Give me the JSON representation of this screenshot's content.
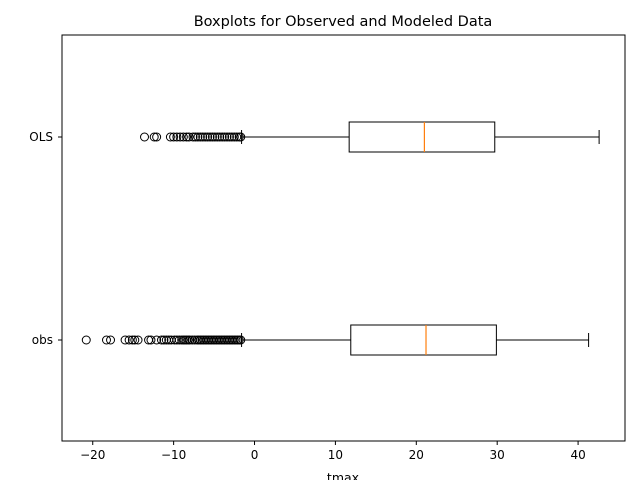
{
  "chart_data": {
    "type": "boxplot",
    "orientation": "horizontal",
    "title": "Boxplots for Observed and Modeled Data",
    "xlabel": "tmax",
    "ylabel": "",
    "xlim": [
      -23.8,
      45.8
    ],
    "xticks": [
      -20,
      -10,
      0,
      10,
      20,
      30,
      40
    ],
    "categories": [
      "obs",
      "OLS"
    ],
    "grid": false,
    "colors": {
      "box": "#000000",
      "median": "#ff7f0e",
      "flier": "#000000"
    },
    "series": [
      {
        "category": "obs",
        "whisker_low": -1.6,
        "q1": 11.9,
        "median": 21.2,
        "q3": 29.9,
        "whisker_high": 41.3,
        "outliers": [
          -20.8,
          -18.3,
          -17.8,
          -16.0,
          -15.5,
          -15.1,
          -14.8,
          -14.4,
          -13.1,
          -12.8,
          -12.1,
          -11.5,
          -11.2,
          -10.9,
          -10.6,
          -10.3,
          -9.9,
          -9.6,
          -9.3,
          -9.0,
          -8.8,
          -8.6,
          -8.4,
          -8.2,
          -8.0,
          -7.7,
          -7.4,
          -7.1,
          -6.9,
          -6.7,
          -6.5,
          -6.3,
          -6.1,
          -5.9,
          -5.7,
          -5.5,
          -5.3,
          -5.1,
          -4.9,
          -4.7,
          -4.5,
          -4.3,
          -4.1,
          -3.9,
          -3.7,
          -3.5,
          -3.3,
          -3.1,
          -2.9,
          -2.7,
          -2.5,
          -2.3,
          -2.1,
          -1.9,
          -1.7
        ]
      },
      {
        "category": "OLS",
        "whisker_low": -1.6,
        "q1": 11.7,
        "median": 21.0,
        "q3": 29.7,
        "whisker_high": 42.6,
        "outliers": [
          -13.6,
          -12.4,
          -12.1,
          -10.4,
          -10.0,
          -9.6,
          -9.2,
          -8.8,
          -8.4,
          -8.1,
          -7.6,
          -7.3,
          -7.0,
          -6.7,
          -6.4,
          -6.1,
          -5.8,
          -5.5,
          -5.2,
          -4.9,
          -4.6,
          -4.3,
          -4.0,
          -3.7,
          -3.4,
          -3.1,
          -2.8,
          -2.5,
          -2.2,
          -1.9,
          -1.7
        ]
      }
    ]
  }
}
